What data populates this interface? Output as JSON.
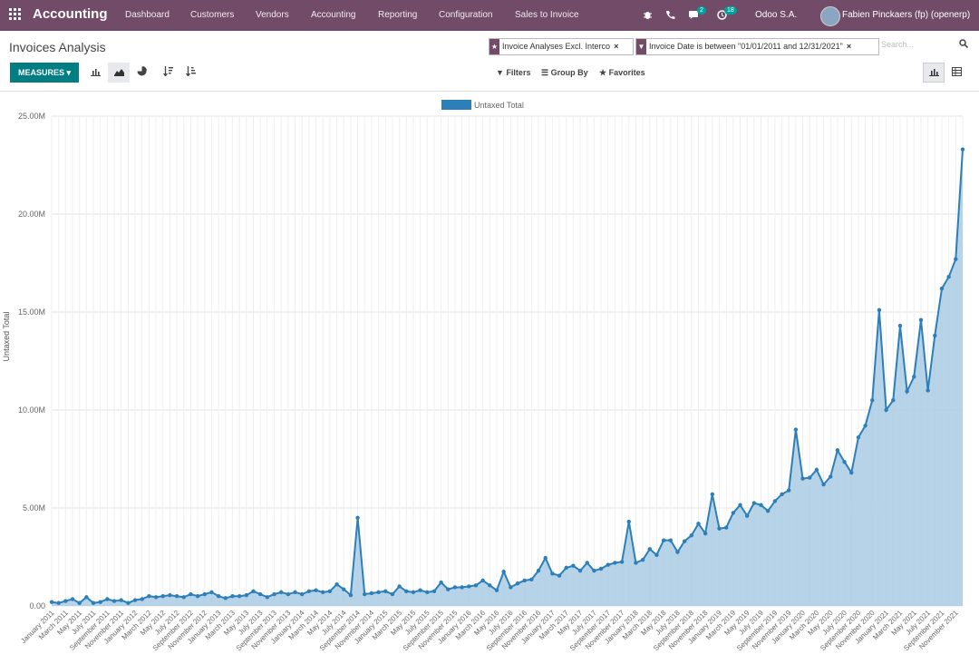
{
  "app": {
    "name": "Accounting"
  },
  "nav": {
    "menus": [
      "Dashboard",
      "Customers",
      "Vendors",
      "Accounting",
      "Reporting",
      "Configuration",
      "Sales to Invoice"
    ],
    "messages_count": "2",
    "activities_count": "18",
    "company": "Odoo S.A.",
    "user": "Fabien Pinckaers (fp) (openerp)"
  },
  "page": {
    "title": "Invoices Analysis"
  },
  "search": {
    "facets": [
      "Invoice Analyses Excl. Interco",
      "Invoice Date is between \"01/01/2011 and 12/31/2021\""
    ],
    "placeholder": "Search..."
  },
  "toolbar": {
    "measures_label": "MEASURES ▾",
    "filters_label": "Filters",
    "groupby_label": "Group By",
    "favorites_label": "Favorites"
  },
  "colors": {
    "brand": "#714b67",
    "teal": "#017e84",
    "line": "#2c7fb8",
    "fill": "#a9cbe4"
  },
  "chart_data": {
    "type": "area",
    "title": "",
    "legend": "Untaxed Total",
    "ylabel": "Untaxed Total",
    "xlabel": "",
    "ylim": [
      0,
      25000000
    ],
    "yticks": [
      "0.00",
      "5.00M",
      "10.00M",
      "15.00M",
      "20.00M",
      "25.00M"
    ],
    "ytick_values": [
      0,
      5000000,
      10000000,
      15000000,
      20000000,
      25000000
    ],
    "x": [
      "January 2011",
      "February 2011",
      "March 2011",
      "April 2011",
      "May 2011",
      "June 2011",
      "July 2011",
      "August 2011",
      "September 2011",
      "October 2011",
      "November 2011",
      "December 2011",
      "January 2012",
      "February 2012",
      "March 2012",
      "April 2012",
      "May 2012",
      "June 2012",
      "July 2012",
      "August 2012",
      "September 2012",
      "October 2012",
      "November 2012",
      "December 2012",
      "January 2013",
      "February 2013",
      "March 2013",
      "April 2013",
      "May 2013",
      "June 2013",
      "July 2013",
      "August 2013",
      "September 2013",
      "October 2013",
      "November 2013",
      "December 2013",
      "January 2014",
      "February 2014",
      "March 2014",
      "April 2014",
      "May 2014",
      "June 2014",
      "July 2014",
      "August 2014",
      "September 2014",
      "October 2014",
      "November 2014",
      "December 2014",
      "January 2015",
      "February 2015",
      "March 2015",
      "April 2015",
      "May 2015",
      "June 2015",
      "July 2015",
      "August 2015",
      "September 2015",
      "October 2015",
      "November 2015",
      "December 2015",
      "January 2016",
      "February 2016",
      "March 2016",
      "April 2016",
      "May 2016",
      "June 2016",
      "July 2016",
      "August 2016",
      "September 2016",
      "October 2016",
      "November 2016",
      "December 2016",
      "January 2017",
      "February 2017",
      "March 2017",
      "April 2017",
      "May 2017",
      "June 2017",
      "July 2017",
      "August 2017",
      "September 2017",
      "October 2017",
      "November 2017",
      "December 2017",
      "January 2018",
      "February 2018",
      "March 2018",
      "April 2018",
      "May 2018",
      "June 2018",
      "July 2018",
      "August 2018",
      "September 2018",
      "October 2018",
      "November 2018",
      "December 2018",
      "January 2019",
      "February 2019",
      "March 2019",
      "April 2019",
      "May 2019",
      "June 2019",
      "July 2019",
      "August 2019",
      "September 2019",
      "October 2019",
      "November 2019",
      "December 2019",
      "January 2020",
      "February 2020",
      "March 2020",
      "April 2020",
      "May 2020",
      "June 2020",
      "July 2020",
      "August 2020",
      "September 2020",
      "October 2020",
      "November 2020",
      "December 2020",
      "January 2021",
      "February 2021",
      "March 2021",
      "April 2021",
      "May 2021",
      "June 2021",
      "July 2021",
      "August 2021",
      "September 2021",
      "October 2021",
      "November 2021",
      "December 2021"
    ],
    "values": [
      200000,
      150000,
      250000,
      350000,
      150000,
      450000,
      150000,
      200000,
      350000,
      250000,
      300000,
      150000,
      300000,
      350000,
      500000,
      450000,
      500000,
      550000,
      500000,
      450000,
      600000,
      500000,
      600000,
      700000,
      500000,
      400000,
      500000,
      500000,
      550000,
      750000,
      600000,
      450000,
      600000,
      700000,
      600000,
      700000,
      600000,
      750000,
      800000,
      700000,
      750000,
      1100000,
      850000,
      550000,
      4500000,
      600000,
      650000,
      700000,
      750000,
      600000,
      1000000,
      750000,
      700000,
      800000,
      700000,
      750000,
      1200000,
      850000,
      950000,
      950000,
      1000000,
      1050000,
      1300000,
      1050000,
      800000,
      1750000,
      950000,
      1150000,
      1300000,
      1350000,
      1800000,
      2450000,
      1650000,
      1550000,
      1950000,
      2050000,
      1800000,
      2200000,
      1800000,
      1900000,
      2100000,
      2200000,
      2250000,
      4300000,
      2200000,
      2350000,
      2900000,
      2600000,
      3350000,
      3350000,
      2750000,
      3300000,
      3600000,
      4200000,
      3700000,
      5700000,
      3950000,
      4000000,
      4750000,
      5150000,
      4600000,
      5250000,
      5150000,
      4850000,
      5350000,
      5700000,
      5900000,
      9000000,
      6500000,
      6550000,
      6950000,
      6200000,
      6600000,
      7950000,
      7350000,
      6800000,
      8600000,
      9200000,
      10500000,
      15100000,
      10000000,
      10500000,
      14300000,
      10950000,
      11700000,
      14600000,
      11000000,
      13800000,
      16200000,
      16800000,
      17700000,
      23300000
    ]
  }
}
